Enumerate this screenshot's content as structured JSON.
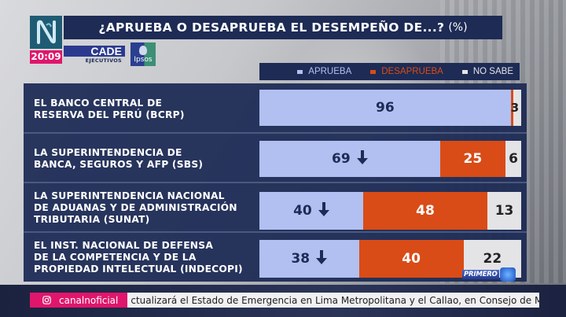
{
  "channel": {
    "logo_icon": "canal-n-logo-icon",
    "clock": "20:09",
    "social_handle": "canalnoficial",
    "social_icon": "instagram-icon"
  },
  "header": {
    "title": "¿APRUEBA O DESAPRUEBA EL DESEMPEÑO DE...?",
    "unit": "(%)"
  },
  "sponsors": {
    "cade": "CADE",
    "cade_sub": "EJECUTIVOS",
    "ipsos": "Ipsos"
  },
  "colors": {
    "aprueba": "#b1c0f1",
    "desaprueba": "#d94c17",
    "no_sabe": "#e4e4e6",
    "panel": "#1d2b55",
    "dark_text": "#1d2b55",
    "accent_pink": "#e0166c"
  },
  "chart_data": {
    "type": "bar",
    "orientation": "horizontal-stacked-100",
    "title": "¿APRUEBA O DESAPRUEBA EL DESEMPEÑO DE...? (%)",
    "xlabel": "",
    "ylabel": "",
    "xlim": [
      0,
      100
    ],
    "legend": {
      "placement": "top-right",
      "entries": [
        "APRUEBA",
        "DESAPRUEBA",
        "NO SABE"
      ]
    },
    "categories": [
      [
        "EL BANCO CENTRAL DE",
        "RESERVA DEL PERÚ (BCRP)"
      ],
      [
        "LA SUPERINTENDENCIA DE",
        "BANCA, SEGUROS Y AFP (SBS)"
      ],
      [
        "LA SUPERINTENDENCIA NACIONAL",
        "DE ADUANAS Y DE ADMINISTRACIÓN",
        "TRIBUTARIA (SUNAT)"
      ],
      [
        "EL INST. NACIONAL DE DEFENSA",
        "DE LA COMPETENCIA Y DE LA",
        "PROPIEDAD INTELECTUAL (INDECOPI)"
      ]
    ],
    "series": [
      {
        "name": "APRUEBA",
        "values": [
          96,
          69,
          40,
          38
        ],
        "trend": [
          "",
          "down",
          "down",
          "down"
        ]
      },
      {
        "name": "DESAPRUEBA",
        "values": [
          1,
          25,
          48,
          40
        ],
        "trend": [
          "",
          "",
          "",
          ""
        ]
      },
      {
        "name": "NO SABE",
        "values": [
          3,
          6,
          13,
          22
        ],
        "trend": [
          "",
          "",
          "",
          ""
        ]
      }
    ]
  },
  "ticker": {
    "text": "ctualizará el Estado de Emergencia en Lima Metropolitana y el Callao, en Consejo de M"
  },
  "watermark": {
    "program": "PRIMERO"
  }
}
